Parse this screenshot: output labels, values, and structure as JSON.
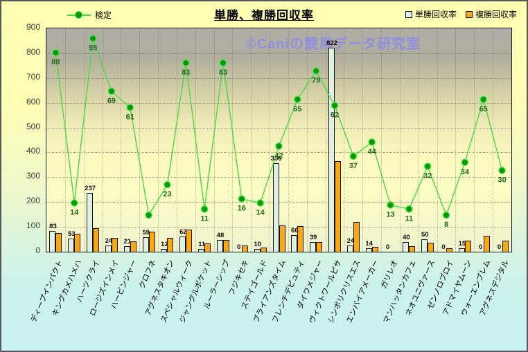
{
  "page": {
    "title": "単勝、複勝回収率",
    "watermark": "©Caniの競馬データ研究室"
  },
  "legend": {
    "line_label": "検定",
    "bar1_label": "単勝回収率",
    "bar2_label": "複勝回収率"
  },
  "colors": {
    "bar1": "#def2e4",
    "bar2": "#ffa800",
    "line": "#3ede3e",
    "marker": "#009b00",
    "marker_ring": "#52e052",
    "line_label": "#1f6b1f",
    "watermark": "#8a8aeb"
  },
  "chart_data": {
    "type": "bar",
    "title": "単勝、複勝回収率",
    "legend_position": "top",
    "grid": true,
    "categories": [
      "ディープインパクト",
      "キングカメハメハ",
      "ハーツクライ",
      "ロージズインメイ",
      "ハービンジャー",
      "クロフネ",
      "アグネスタキオン",
      "スペシャルウィーク",
      "ジャングルポケット",
      "ルーラーシップ",
      "フジキセキ",
      "ステイゴールド",
      "ブライアンズタイム",
      "フレンチデピュティ",
      "ダイワメジャー",
      "ヴィクトワールピサ",
      "シンボリクリスエス",
      "エンパイアメーカー",
      "ガリレオ",
      "マンハッタンカフェ",
      "ネオユニヴァース",
      "ゼンノロブロイ",
      "アドマイヤムーン",
      "ウォーエンブレム",
      "アグネスデジタル"
    ],
    "series": [
      {
        "name": "単勝回収率",
        "type": "bar",
        "color": "#def2e4",
        "values": [
          83,
          53,
          237,
          24,
          21,
          59,
          12,
          62,
          11,
          48,
          0,
          10,
          356,
          66,
          39,
          822,
          24,
          14,
          0,
          40,
          50,
          0,
          15,
          0,
          0
        ],
        "data_labels": [
          "83",
          "53",
          "237",
          "24",
          "21",
          "59",
          "12",
          "62",
          "11",
          "48",
          "0",
          "10",
          "356",
          "66",
          "39",
          "822",
          "24",
          "14",
          "0",
          "40",
          "50",
          "0",
          "15",
          "0",
          "0"
        ]
      },
      {
        "name": "複勝回収率",
        "type": "bar",
        "color": "#ffa800",
        "values": [
          75,
          72,
          95,
          56,
          43,
          80,
          55,
          88,
          33,
          48,
          25,
          18,
          105,
          103,
          40,
          366,
          120,
          20,
          0,
          22,
          36,
          15,
          45,
          65,
          45
        ],
        "data_labels": []
      },
      {
        "name": "検定",
        "type": "line",
        "color": "#3ede3e",
        "values": [
          88,
          14,
          95,
          69,
          61,
          8,
          23,
          83,
          11,
          83,
          16,
          14,
          42,
          65,
          79,
          62,
          37,
          44,
          13,
          11,
          32,
          8,
          34,
          65,
          30
        ],
        "data_labels": [
          "88",
          "14",
          "95",
          "69",
          "61",
          "",
          "23",
          "83",
          "11",
          "83",
          "16",
          "14",
          "42",
          "65",
          "79",
          "62",
          "37",
          "44",
          "13",
          "11",
          "32",
          "8",
          "34",
          "65",
          "30"
        ],
        "axis": {
          "min": -10,
          "max": 100
        }
      }
    ],
    "y_axis": {
      "min": 0,
      "max": 900,
      "step": 100,
      "ticks": [
        "900",
        "800",
        "700",
        "600",
        "500",
        "400",
        "300",
        "200",
        "100",
        "0"
      ]
    }
  }
}
